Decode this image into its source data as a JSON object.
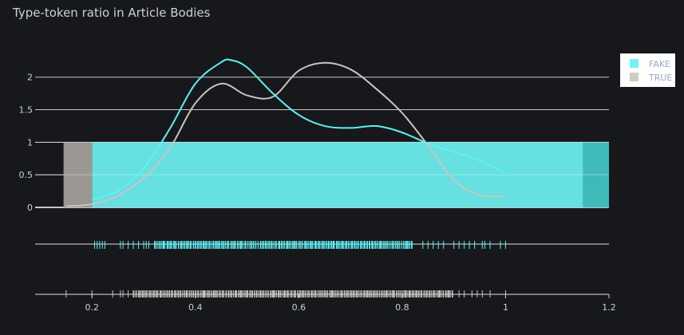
{
  "chart_data": {
    "type": "histogram_with_kde_and_rug",
    "title": "Type-token ratio in Article Bodies",
    "xlabel": "",
    "ylabel": "",
    "xlim": [
      0.09,
      1.2
    ],
    "ylim": [
      0,
      2.45
    ],
    "x_ticks": [
      0.2,
      0.4,
      0.6,
      0.8,
      1,
      1.2
    ],
    "y_ticks": [
      0,
      0.5,
      1,
      1.5,
      2
    ],
    "grid": true,
    "legend_position": "top-right",
    "series": [
      {
        "name": "FAKE",
        "color": "#6ff3f5",
        "histogram": [
          {
            "x0": 0.2,
            "x1": 1.15,
            "value": 1
          },
          {
            "x0": 1.15,
            "x1": 1.2,
            "value": 1
          }
        ],
        "kde": {
          "x": [
            0.2,
            0.25,
            0.3,
            0.35,
            0.4,
            0.45,
            0.47,
            0.5,
            0.55,
            0.6,
            0.65,
            0.7,
            0.75,
            0.8,
            0.85,
            0.9,
            0.95,
            1.0
          ],
          "y": [
            0.12,
            0.25,
            0.6,
            1.2,
            1.9,
            2.23,
            2.26,
            2.15,
            1.75,
            1.42,
            1.25,
            1.22,
            1.25,
            1.15,
            0.98,
            0.85,
            0.72,
            0.52
          ]
        },
        "rug": {
          "dense_ranges": [
            [
              0.32,
              0.82
            ]
          ],
          "sparse": [
            0.205,
            0.21,
            0.215,
            0.22,
            0.225,
            0.255,
            0.26,
            0.27,
            0.28,
            0.29,
            0.3,
            0.305,
            0.31,
            0.84,
            0.85,
            0.86,
            0.87,
            0.88,
            0.9,
            0.91,
            0.92,
            0.93,
            0.94,
            0.955,
            0.96,
            0.97,
            0.99,
            1.0
          ]
        }
      },
      {
        "name": "TRUE",
        "color": "#cfcbc5",
        "histogram": [
          {
            "x0": 0.145,
            "x1": 0.2,
            "value": 1
          }
        ],
        "kde": {
          "x": [
            0.15,
            0.2,
            0.25,
            0.3,
            0.35,
            0.4,
            0.45,
            0.5,
            0.55,
            0.6,
            0.65,
            0.7,
            0.75,
            0.8,
            0.85,
            0.9,
            0.95,
            1.0
          ],
          "y": [
            0.02,
            0.05,
            0.18,
            0.45,
            0.9,
            1.6,
            1.9,
            1.72,
            1.7,
            2.1,
            2.22,
            2.12,
            1.82,
            1.45,
            0.95,
            0.42,
            0.19,
            0.17
          ]
        },
        "rug": {
          "dense_ranges": [
            [
              0.28,
              0.9
            ]
          ],
          "sparse": [
            0.15,
            0.2,
            0.24,
            0.255,
            0.26,
            0.27,
            0.91,
            0.92,
            0.935,
            0.945,
            0.955,
            0.97,
            1.0
          ]
        }
      }
    ]
  }
}
